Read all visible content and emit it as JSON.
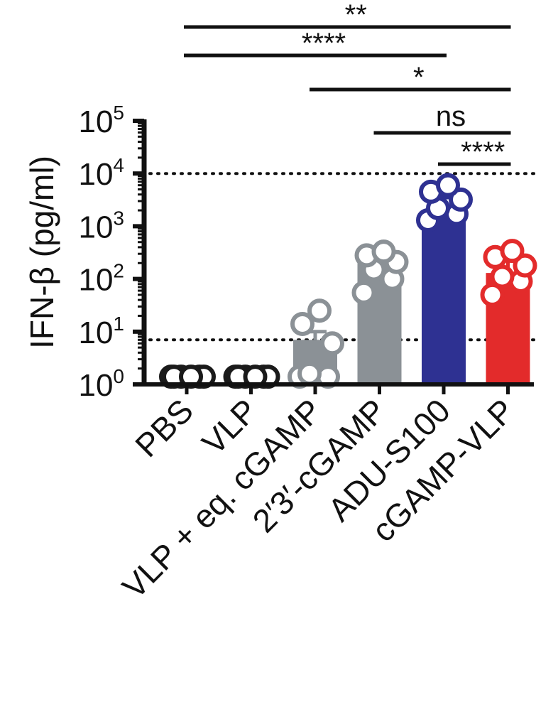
{
  "chart_data": {
    "type": "bar",
    "ylabel": "IFN-β (pg/ml)",
    "yscale": "log10",
    "ylim": [
      1,
      100000
    ],
    "y_ticks": [
      {
        "value": 1,
        "base": "10",
        "exp": "0"
      },
      {
        "value": 10,
        "base": "10",
        "exp": "1"
      },
      {
        "value": 100,
        "base": "10",
        "exp": "2"
      },
      {
        "value": 1000,
        "base": "10",
        "exp": "3"
      },
      {
        "value": 10000,
        "base": "10",
        "exp": "4"
      },
      {
        "value": 100000,
        "base": "10",
        "exp": "5"
      }
    ],
    "categories": [
      "PBS",
      "VLP",
      "VLP + eq. cGAMP",
      "2′3′-cGAMP",
      "ADU-S100",
      "cGAMP-VLP"
    ],
    "values": [
      1,
      1,
      7,
      200,
      1800,
      130
    ],
    "error_upper": [
      1,
      1,
      10,
      330,
      3500,
      220
    ],
    "bar_colors": [
      "#1a1a1a",
      "#1a1a1a",
      "#8b9196",
      "#8b9196",
      "#2e3192",
      "#e32b2b"
    ],
    "point_colors": [
      "#1a1a1a",
      "#1a1a1a",
      "#8b9196",
      "#8b9196",
      "#2e3192",
      "#e32b2b"
    ],
    "points": [
      [
        1.4,
        1.4,
        1.4,
        1.4,
        1.4,
        1.4
      ],
      [
        1.4,
        1.4,
        1.4,
        1.4,
        1.4,
        1.4
      ],
      [
        1.4,
        1.4,
        1.6,
        6,
        14,
        25
      ],
      [
        55,
        100,
        150,
        210,
        280,
        330
      ],
      [
        1300,
        1700,
        2200,
        3200,
        4500,
        6000
      ],
      [
        50,
        90,
        110,
        180,
        260,
        340
      ]
    ],
    "reference_lines": [
      10000,
      7
    ],
    "significance": [
      {
        "label": "**",
        "from": 0,
        "to": 5
      },
      {
        "label": "****",
        "from": 0,
        "to": 4
      },
      {
        "label": "*",
        "from": 2,
        "to": 5
      },
      {
        "label": "ns",
        "from": 3,
        "to": 5
      },
      {
        "label": "****",
        "from": 4,
        "to": 5
      }
    ]
  }
}
